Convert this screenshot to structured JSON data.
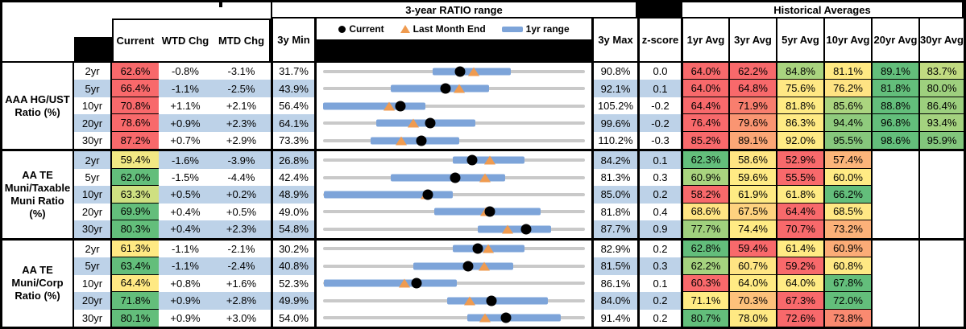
{
  "header": {
    "chart_section_title": "3-year RATIO range",
    "averages_section_title": "Historical Averages",
    "legend": {
      "current": "Current",
      "last_month_end": "Last Month End",
      "range_1yr": "1yr range"
    },
    "columns": {
      "current": "Current",
      "wtd": "WTD Chg",
      "mtd": "MTD Chg",
      "min3y": "3y Min",
      "max3y": "3y Max",
      "zscore": "z-score"
    },
    "avg_columns": [
      "1yr Avg",
      "3yr Avg",
      "5yr Avg",
      "10yr Avg",
      "20yr Avg",
      "30yr Avg"
    ]
  },
  "colors": {
    "stripe_blue": "#BDD2E8",
    "heat_red": "#F8696B",
    "heat_yellow": "#FFEB84",
    "heat_green": "#63BE7B",
    "range_bar_blue": "#7DA4D9",
    "track_gray": "#C9C9C9",
    "triangle_orange": "#EF9B50",
    "dot_black": "#000000"
  },
  "chart_data": {
    "type": "table",
    "note": "bullet/range chart per row: gray track spans 3y Min..3y Max, blue bar = 1yr range (values estimated from pixels), black dot = Current, orange triangle = Last Month End",
    "groups": [
      {
        "label_lines": [
          "AAA HG/UST",
          "Ratio (%)"
        ],
        "rows": [
          {
            "tenor": "2yr",
            "current": {
              "v": "62.6%",
              "bg": "#F8696B"
            },
            "wtd": "-0.8%",
            "mtd": "-3.1%",
            "min": "31.7%",
            "max": "90.8%",
            "z": "0.0",
            "range": {
              "lo": 31.7,
              "hi": 90.8,
              "bar": [
                56.5,
                74.0
              ],
              "dot": 62.6,
              "tri": 65.7
            },
            "avgs": [
              {
                "v": "64.0%",
                "bg": "#F8696B"
              },
              {
                "v": "62.2%",
                "bg": "#F8696B"
              },
              {
                "v": "84.8%",
                "bg": "#A9D47F"
              },
              {
                "v": "81.1%",
                "bg": "#FFE983"
              },
              {
                "v": "89.1%",
                "bg": "#63BE7B"
              },
              {
                "v": "83.7%",
                "bg": "#C1DB81"
              }
            ]
          },
          {
            "tenor": "5yr",
            "current": {
              "v": "66.4%",
              "bg": "#F8696B"
            },
            "wtd": "-1.1%",
            "mtd": "-2.5%",
            "min": "43.9%",
            "max": "92.1%",
            "z": "0.1",
            "range": {
              "lo": 43.9,
              "hi": 92.1,
              "bar": [
                56.3,
                74.5
              ],
              "dot": 66.4,
              "tri": 68.9
            },
            "avgs": [
              {
                "v": "64.0%",
                "bg": "#F8696B"
              },
              {
                "v": "64.8%",
                "bg": "#F8696B"
              },
              {
                "v": "75.6%",
                "bg": "#FFE884"
              },
              {
                "v": "76.2%",
                "bg": "#FFE383"
              },
              {
                "v": "81.8%",
                "bg": "#63BE7B"
              },
              {
                "v": "80.0%",
                "bg": "#9ED07E"
              }
            ]
          },
          {
            "tenor": "10yr",
            "current": {
              "v": "70.8%",
              "bg": "#F8696B"
            },
            "wtd": "+1.1%",
            "mtd": "+2.1%",
            "min": "56.4%",
            "max": "105.2%",
            "z": "-0.2",
            "range": {
              "lo": 56.4,
              "hi": 105.2,
              "bar": [
                56.4,
                75.5
              ],
              "dot": 70.8,
              "tri": 68.7
            },
            "avgs": [
              {
                "v": "64.4%",
                "bg": "#F8696B"
              },
              {
                "v": "71.9%",
                "bg": "#F87E6E"
              },
              {
                "v": "81.8%",
                "bg": "#FFEB84"
              },
              {
                "v": "85.6%",
                "bg": "#ABD47F"
              },
              {
                "v": "88.8%",
                "bg": "#63BE7B"
              },
              {
                "v": "86.4%",
                "bg": "#9CCF7E"
              }
            ]
          },
          {
            "tenor": "20yr",
            "current": {
              "v": "78.6%",
              "bg": "#F8696B"
            },
            "wtd": "+0.9%",
            "mtd": "+2.3%",
            "min": "64.1%",
            "max": "99.6%",
            "z": "-0.2",
            "range": {
              "lo": 64.1,
              "hi": 99.6,
              "bar": [
                71.3,
                84.8
              ],
              "dot": 78.6,
              "tri": 76.3
            },
            "avgs": [
              {
                "v": "76.4%",
                "bg": "#F8696B"
              },
              {
                "v": "79.6%",
                "bg": "#FA9572"
              },
              {
                "v": "86.3%",
                "bg": "#FFEB84"
              },
              {
                "v": "94.4%",
                "bg": "#8FCB7D"
              },
              {
                "v": "96.8%",
                "bg": "#63BE7B"
              },
              {
                "v": "93.4%",
                "bg": "#A4D27F"
              }
            ]
          },
          {
            "tenor": "30yr",
            "current": {
              "v": "87.2%",
              "bg": "#F8696B"
            },
            "wtd": "+0.7%",
            "mtd": "+2.9%",
            "min": "73.3%",
            "max": "110.2%",
            "z": "-0.3",
            "range": {
              "lo": 73.3,
              "hi": 110.2,
              "bar": [
                80.0,
                92.5
              ],
              "dot": 87.2,
              "tri": 84.3
            },
            "avgs": [
              {
                "v": "85.2%",
                "bg": "#F8696B"
              },
              {
                "v": "89.1%",
                "bg": "#FBA776"
              },
              {
                "v": "92.0%",
                "bg": "#FFEB84"
              },
              {
                "v": "95.5%",
                "bg": "#86C77C"
              },
              {
                "v": "98.6%",
                "bg": "#63BE7B"
              },
              {
                "v": "95.9%",
                "bg": "#82C67C"
              }
            ]
          }
        ]
      },
      {
        "label_lines": [
          "AA TE",
          "Muni/Taxable",
          "Muni Ratio",
          "(%)"
        ],
        "rows": [
          {
            "tenor": "2yr",
            "current": {
              "v": "59.4%",
              "bg": "#F2E884"
            },
            "wtd": "-1.6%",
            "mtd": "-3.9%",
            "min": "26.8%",
            "max": "84.2%",
            "z": "0.1",
            "range": {
              "lo": 26.8,
              "hi": 84.2,
              "bar": [
                55.3,
                70.9
              ],
              "dot": 59.4,
              "tri": 63.3
            },
            "avgs": [
              {
                "v": "62.3%",
                "bg": "#63BE7B"
              },
              {
                "v": "58.6%",
                "bg": "#FFE583"
              },
              {
                "v": "52.9%",
                "bg": "#F8696B"
              },
              {
                "v": "57.4%",
                "bg": "#FCB57A"
              },
              null,
              null
            ]
          },
          {
            "tenor": "5yr",
            "current": {
              "v": "62.0%",
              "bg": "#63BE7B"
            },
            "wtd": "-1.5%",
            "mtd": "-4.4%",
            "min": "42.4%",
            "max": "81.3%",
            "z": "0.3",
            "range": {
              "lo": 42.4,
              "hi": 81.3,
              "bar": [
                52.5,
                69.5
              ],
              "dot": 62.0,
              "tri": 66.4
            },
            "avgs": [
              {
                "v": "60.9%",
                "bg": "#A9D47F"
              },
              {
                "v": "59.6%",
                "bg": "#FFEB84"
              },
              {
                "v": "55.5%",
                "bg": "#F8696B"
              },
              {
                "v": "60.0%",
                "bg": "#FFEB84"
              },
              null,
              null
            ]
          },
          {
            "tenor": "10yr",
            "current": {
              "v": "63.3%",
              "bg": "#CFE081"
            },
            "wtd": "+0.5%",
            "mtd": "+0.2%",
            "min": "48.9%",
            "max": "85.0%",
            "z": "0.2",
            "range": {
              "lo": 48.9,
              "hi": 85.0,
              "bar": [
                49.0,
                66.8
              ],
              "dot": 63.3,
              "tri": 63.1
            },
            "avgs": [
              {
                "v": "58.2%",
                "bg": "#F8696B"
              },
              {
                "v": "61.9%",
                "bg": "#FFEB84"
              },
              {
                "v": "61.8%",
                "bg": "#FFEB84"
              },
              {
                "v": "66.2%",
                "bg": "#63BE7B"
              },
              null,
              null
            ]
          },
          {
            "tenor": "20yr",
            "current": {
              "v": "69.9%",
              "bg": "#63BE7B"
            },
            "wtd": "+0.4%",
            "mtd": "+0.5%",
            "min": "49.0%",
            "max": "81.8%",
            "z": "0.4",
            "range": {
              "lo": 49.0,
              "hi": 81.8,
              "bar": [
                62.9,
                76.2
              ],
              "dot": 69.9,
              "tri": 69.4
            },
            "avgs": [
              {
                "v": "68.6%",
                "bg": "#FFE483"
              },
              {
                "v": "67.5%",
                "bg": "#FED27F"
              },
              {
                "v": "64.4%",
                "bg": "#F8696B"
              },
              {
                "v": "68.5%",
                "bg": "#FFE884"
              },
              null,
              null
            ]
          },
          {
            "tenor": "30yr",
            "current": {
              "v": "80.3%",
              "bg": "#63BE7B"
            },
            "wtd": "+0.4%",
            "mtd": "+2.3%",
            "min": "54.8%",
            "max": "87.7%",
            "z": "0.9",
            "range": {
              "lo": 54.8,
              "hi": 87.7,
              "bar": [
                74.2,
                83.4
              ],
              "dot": 80.3,
              "tri": 78.0
            },
            "avgs": [
              {
                "v": "77.7%",
                "bg": "#A0D17E"
              },
              {
                "v": "74.4%",
                "bg": "#FFEB84"
              },
              {
                "v": "70.7%",
                "bg": "#F8696B"
              },
              {
                "v": "73.2%",
                "bg": "#FCB179"
              },
              null,
              null
            ]
          }
        ]
      },
      {
        "label_lines": [
          "AA TE",
          "Muni/Corp",
          "Ratio (%)"
        ],
        "rows": [
          {
            "tenor": "2yr",
            "current": {
              "v": "61.3%",
              "bg": "#FFE983"
            },
            "wtd": "-1.1%",
            "mtd": "-2.1%",
            "min": "30.2%",
            "max": "82.9%",
            "z": "0.2",
            "range": {
              "lo": 30.2,
              "hi": 82.9,
              "bar": [
                56.3,
                70.8
              ],
              "dot": 61.3,
              "tri": 63.4
            },
            "avgs": [
              {
                "v": "62.8%",
                "bg": "#63BE7B"
              },
              {
                "v": "59.4%",
                "bg": "#F8696B"
              },
              {
                "v": "61.4%",
                "bg": "#FFEB84"
              },
              {
                "v": "60.9%",
                "bg": "#FBAC77"
              },
              null,
              null
            ]
          },
          {
            "tenor": "5yr",
            "current": {
              "v": "63.4%",
              "bg": "#63BE7B"
            },
            "wtd": "-1.1%",
            "mtd": "-2.4%",
            "min": "40.8%",
            "max": "81.5%",
            "z": "0.3",
            "range": {
              "lo": 40.8,
              "hi": 81.5,
              "bar": [
                54.8,
                70.4
              ],
              "dot": 63.4,
              "tri": 65.8
            },
            "avgs": [
              {
                "v": "62.2%",
                "bg": "#A5D37F"
              },
              {
                "v": "60.7%",
                "bg": "#FFE583"
              },
              {
                "v": "59.2%",
                "bg": "#F8696B"
              },
              {
                "v": "60.8%",
                "bg": "#FFE884"
              },
              null,
              null
            ]
          },
          {
            "tenor": "10yr",
            "current": {
              "v": "64.4%",
              "bg": "#FFE983"
            },
            "wtd": "+0.8%",
            "mtd": "+1.6%",
            "min": "52.3%",
            "max": "86.1%",
            "z": "0.1",
            "range": {
              "lo": 52.3,
              "hi": 86.1,
              "bar": [
                52.4,
                69.6
              ],
              "dot": 64.4,
              "tri": 62.8
            },
            "avgs": [
              {
                "v": "60.3%",
                "bg": "#F8696B"
              },
              {
                "v": "64.0%",
                "bg": "#FFEB84"
              },
              {
                "v": "64.0%",
                "bg": "#FFEB84"
              },
              {
                "v": "67.8%",
                "bg": "#63BE7B"
              },
              null,
              null
            ]
          },
          {
            "tenor": "20yr",
            "current": {
              "v": "71.8%",
              "bg": "#63BE7B"
            },
            "wtd": "+0.9%",
            "mtd": "+2.8%",
            "min": "49.9%",
            "max": "84.0%",
            "z": "0.2",
            "range": {
              "lo": 49.9,
              "hi": 84.0,
              "bar": [
                66.1,
                79.2
              ],
              "dot": 71.8,
              "tri": 69.0
            },
            "avgs": [
              {
                "v": "71.1%",
                "bg": "#FFEB84"
              },
              {
                "v": "70.3%",
                "bg": "#FDC17B"
              },
              {
                "v": "67.3%",
                "bg": "#F8696B"
              },
              {
                "v": "72.0%",
                "bg": "#63BE7B"
              },
              null,
              null
            ]
          },
          {
            "tenor": "30yr",
            "current": {
              "v": "80.1%",
              "bg": "#63BE7B"
            },
            "wtd": "+0.9%",
            "mtd": "+3.0%",
            "min": "54.0%",
            "max": "91.4%",
            "z": "0.2",
            "range": {
              "lo": 54.0,
              "hi": 91.4,
              "bar": [
                74.6,
                88.0
              ],
              "dot": 80.1,
              "tri": 77.1
            },
            "avgs": [
              {
                "v": "80.7%",
                "bg": "#63BE7B"
              },
              {
                "v": "78.0%",
                "bg": "#FFE983"
              },
              {
                "v": "72.6%",
                "bg": "#F8696B"
              },
              {
                "v": "73.8%",
                "bg": "#F98A70"
              },
              null,
              null
            ]
          }
        ]
      }
    ]
  }
}
